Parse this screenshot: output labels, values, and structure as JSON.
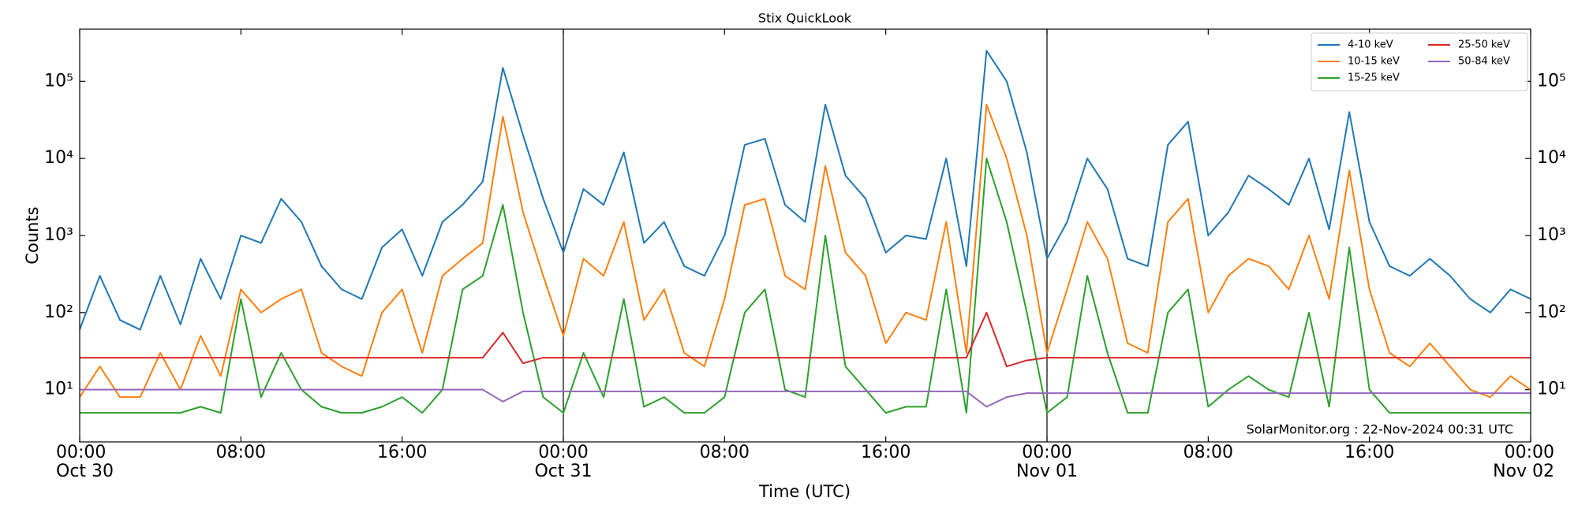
{
  "chart_data": {
    "type": "line",
    "title": "Stix QuickLook",
    "xlabel": "Time (UTC)",
    "ylabel": "Counts",
    "annotation": "SolarMonitor.org : 22-Nov-2024 00:31 UTC",
    "log_y": true,
    "legend": {
      "loc": "upper right",
      "ncol": 2
    },
    "ylim": [
      2.1,
      476000
    ],
    "yticks": [
      {
        "value": 10,
        "label": "10¹"
      },
      {
        "value": 100,
        "label": "10²"
      },
      {
        "value": 1000,
        "label": "10³"
      },
      {
        "value": 10000,
        "label": "10⁴"
      },
      {
        "value": 100000,
        "label": "10⁵"
      }
    ],
    "xlim": [
      "Oct 30 00:00",
      "Nov 02 00:00"
    ],
    "xticks": [
      {
        "value": "Oct 30 00:00",
        "label": "00:00\nOct 30"
      },
      {
        "value": "Oct 30 08:00",
        "label": "08:00"
      },
      {
        "value": "Oct 30 16:00",
        "label": "16:00"
      },
      {
        "value": "Oct 31 00:00",
        "label": "00:00\nOct 31"
      },
      {
        "value": "Oct 31 08:00",
        "label": "08:00"
      },
      {
        "value": "Oct 31 16:00",
        "label": "16:00"
      },
      {
        "value": "Nov 01 00:00",
        "label": "00:00\nNov 01"
      },
      {
        "value": "Nov 01 08:00",
        "label": "08:00"
      },
      {
        "value": "Nov 01 16:00",
        "label": "16:00"
      },
      {
        "value": "Nov 02 00:00",
        "label": "00:00\nNov 02"
      }
    ],
    "vlines": [
      "Oct 31 00:00",
      "Nov 01 00:00"
    ],
    "x": [
      "Oct 30 00:00",
      "Oct 30 01:00",
      "Oct 30 02:00",
      "Oct 30 03:00",
      "Oct 30 04:00",
      "Oct 30 05:00",
      "Oct 30 06:00",
      "Oct 30 07:00",
      "Oct 30 08:00",
      "Oct 30 09:00",
      "Oct 30 10:00",
      "Oct 30 11:00",
      "Oct 30 12:00",
      "Oct 30 13:00",
      "Oct 30 14:00",
      "Oct 30 15:00",
      "Oct 30 16:00",
      "Oct 30 17:00",
      "Oct 30 18:00",
      "Oct 30 19:00",
      "Oct 30 20:00",
      "Oct 30 21:00",
      "Oct 30 22:00",
      "Oct 30 23:00",
      "Oct 31 00:00",
      "Oct 31 01:00",
      "Oct 31 02:00",
      "Oct 31 03:00",
      "Oct 31 04:00",
      "Oct 31 05:00",
      "Oct 31 06:00",
      "Oct 31 07:00",
      "Oct 31 08:00",
      "Oct 31 09:00",
      "Oct 31 10:00",
      "Oct 31 11:00",
      "Oct 31 12:00",
      "Oct 31 13:00",
      "Oct 31 14:00",
      "Oct 31 15:00",
      "Oct 31 16:00",
      "Oct 31 17:00",
      "Oct 31 18:00",
      "Oct 31 19:00",
      "Oct 31 20:00",
      "Oct 31 21:00",
      "Oct 31 22:00",
      "Oct 31 23:00",
      "Nov 01 00:00",
      "Nov 01 01:00",
      "Nov 01 02:00",
      "Nov 01 03:00",
      "Nov 01 04:00",
      "Nov 01 05:00",
      "Nov 01 06:00",
      "Nov 01 07:00",
      "Nov 01 08:00",
      "Nov 01 09:00",
      "Nov 01 10:00",
      "Nov 01 11:00",
      "Nov 01 12:00",
      "Nov 01 13:00",
      "Nov 01 14:00",
      "Nov 01 15:00",
      "Nov 01 16:00",
      "Nov 01 17:00",
      "Nov 01 18:00",
      "Nov 01 19:00",
      "Nov 01 20:00",
      "Nov 01 21:00",
      "Nov 01 22:00",
      "Nov 01 23:00",
      "Nov 02 00:00"
    ],
    "series": [
      {
        "name": "4-10 keV",
        "color": "#1f77b4",
        "values": [
          60,
          300,
          80,
          60,
          300,
          70,
          500,
          150,
          1000,
          800,
          3000,
          1500,
          400,
          200,
          150,
          700,
          1200,
          300,
          1500,
          2500,
          5000,
          150000,
          20000,
          3000,
          600,
          4000,
          2500,
          12000,
          800,
          1500,
          400,
          300,
          1000,
          15000,
          18000,
          2500,
          1500,
          50000,
          6000,
          3000,
          600,
          1000,
          900,
          10000,
          400,
          250000,
          100000,
          12000,
          500,
          1500,
          10000,
          4000,
          500,
          400,
          15000,
          30000,
          1000,
          2000,
          6000,
          4000,
          2500,
          10000,
          1200,
          40000,
          1500,
          400,
          300,
          500,
          300,
          150,
          100,
          200,
          150
        ]
      },
      {
        "name": "10-15 keV",
        "color": "#ff7f0e",
        "values": [
          8,
          20,
          8,
          8,
          30,
          10,
          50,
          15,
          200,
          100,
          150,
          200,
          30,
          20,
          15,
          100,
          200,
          30,
          300,
          500,
          800,
          35000,
          2000,
          300,
          50,
          500,
          300,
          1500,
          80,
          200,
          30,
          20,
          150,
          2500,
          3000,
          300,
          200,
          8000,
          600,
          300,
          40,
          100,
          80,
          1500,
          30,
          50000,
          10000,
          1000,
          30,
          200,
          1500,
          500,
          40,
          30,
          1500,
          3000,
          100,
          300,
          500,
          400,
          200,
          1000,
          150,
          7000,
          200,
          30,
          20,
          40,
          20,
          10,
          8,
          15,
          10
        ]
      },
      {
        "name": "15-25 keV",
        "color": "#2ca02c",
        "values": [
          5,
          5,
          5,
          5,
          5,
          5,
          6,
          5,
          150,
          8,
          30,
          10,
          6,
          5,
          5,
          6,
          8,
          5,
          10,
          200,
          300,
          2500,
          100,
          8,
          5,
          30,
          8,
          150,
          6,
          8,
          5,
          5,
          8,
          100,
          200,
          10,
          8,
          1000,
          20,
          10,
          5,
          6,
          6,
          200,
          5,
          10000,
          1500,
          100,
          5,
          8,
          300,
          30,
          5,
          5,
          100,
          200,
          6,
          10,
          15,
          10,
          8,
          100,
          6,
          700,
          10,
          5,
          5,
          5,
          5,
          5,
          5,
          5,
          5
        ]
      },
      {
        "name": "25-50 keV",
        "color": "#d62728",
        "values": [
          26,
          26,
          26,
          26,
          26,
          26,
          26,
          26,
          26,
          26,
          26,
          26,
          26,
          26,
          26,
          26,
          26,
          26,
          26,
          26,
          26,
          55,
          22,
          26,
          26,
          26,
          26,
          26,
          26,
          26,
          26,
          26,
          26,
          26,
          26,
          26,
          26,
          26,
          26,
          26,
          26,
          26,
          26,
          26,
          26,
          100,
          20,
          24,
          26,
          26,
          26,
          26,
          26,
          26,
          26,
          26,
          26,
          26,
          26,
          26,
          26,
          26,
          26,
          26,
          26,
          26,
          26,
          26,
          26,
          26,
          26,
          26,
          26
        ]
      },
      {
        "name": "50-84 keV",
        "color": "#9467bd",
        "values": [
          10,
          10,
          10,
          10,
          10,
          10,
          10,
          10,
          10,
          10,
          10,
          10,
          10,
          10,
          10,
          10,
          10,
          10,
          10,
          10,
          10,
          7,
          9.5,
          9.5,
          9.5,
          9.5,
          9.5,
          9.5,
          9.5,
          9.5,
          9.5,
          9.5,
          9.5,
          9.5,
          9.5,
          9.5,
          9.5,
          9.5,
          9.5,
          9.5,
          9.5,
          9.5,
          9.5,
          9.5,
          9.5,
          6,
          8,
          9,
          9,
          9,
          9,
          9,
          9,
          9,
          9,
          9,
          9,
          9,
          9,
          9,
          9,
          9,
          9,
          9,
          9,
          9,
          9,
          9,
          9,
          9,
          9,
          9,
          9
        ]
      }
    ]
  }
}
